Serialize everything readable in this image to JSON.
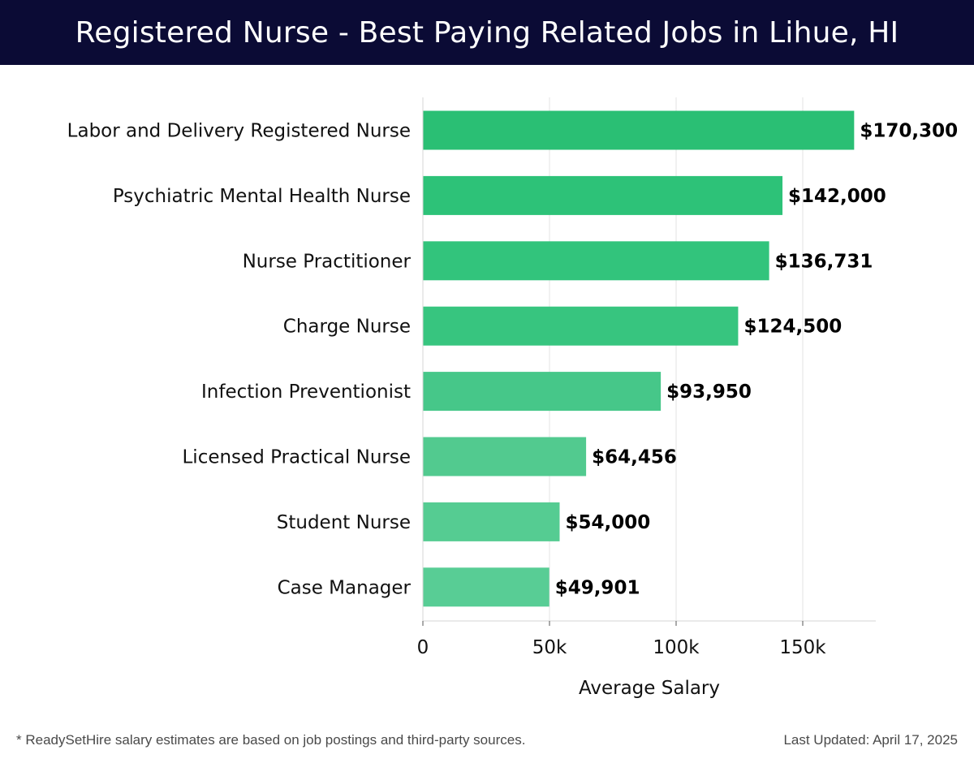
{
  "header": {
    "title": "Registered Nurse - Best Paying Related Jobs in Lihue, HI"
  },
  "chart_data": {
    "type": "bar",
    "orientation": "horizontal",
    "title": "Registered Nurse - Best Paying Related Jobs in Lihue, HI",
    "xlabel": "Average Salary",
    "ylabel": "",
    "xlim": [
      0,
      180000
    ],
    "grid": true,
    "categories": [
      "Labor and Delivery Registered Nurse",
      "Psychiatric Mental Health Nurse",
      "Nurse Practitioner",
      "Charge Nurse",
      "Infection Preventionist",
      "Licensed Practical Nurse",
      "Student Nurse",
      "Case Manager"
    ],
    "values": [
      170300,
      142000,
      136731,
      124500,
      93950,
      64456,
      54000,
      49901
    ],
    "value_labels": [
      "$170,300",
      "$142,000",
      "$136,731",
      "$124,500",
      "$93,950",
      "$64,456",
      "$54,000",
      "$49,901"
    ],
    "bar_colors": [
      "#2abf74",
      "#2dc278",
      "#32c47c",
      "#37c57f",
      "#46c789",
      "#52ca8f",
      "#55cc92",
      "#58cd95"
    ],
    "x_ticks": [
      {
        "value": 0,
        "label": "0"
      },
      {
        "value": 50000,
        "label": "50k"
      },
      {
        "value": 100000,
        "label": "100k"
      },
      {
        "value": 150000,
        "label": "150k"
      }
    ]
  },
  "footer": {
    "note": "* ReadySetHire salary estimates are based on job postings and third-party sources.",
    "updated": "Last Updated: April 17, 2025"
  }
}
